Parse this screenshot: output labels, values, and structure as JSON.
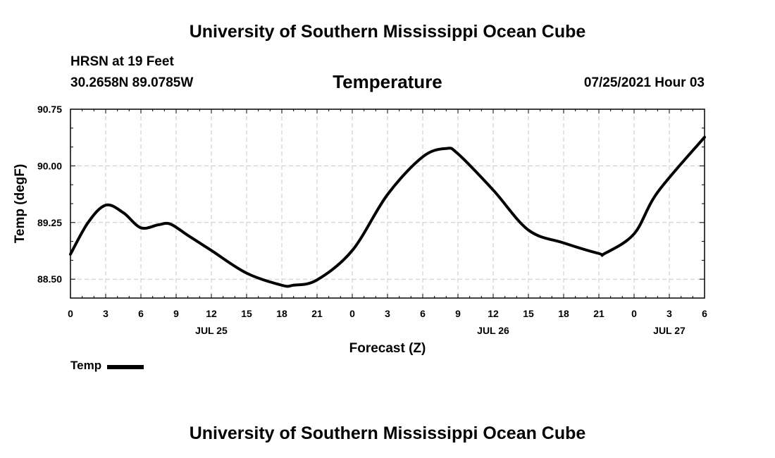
{
  "header": {
    "title": "University of Southern Mississippi Ocean Cube",
    "station": "HRSN at 19 Feet",
    "coords": "30.2658N  89.0785W",
    "subtitle": "Temperature",
    "timestamp": "07/25/2021 Hour 03",
    "footer_title": "University of Southern Mississippi Ocean Cube"
  },
  "chart_data": {
    "type": "line",
    "xlabel": "Forecast (Z)",
    "ylabel": "Temp (degF)",
    "xlim": [
      0,
      54
    ],
    "ylim": [
      88.25,
      90.75
    ],
    "y_ticks": [
      "88.50",
      "89.25",
      "90.00",
      "90.75"
    ],
    "x_tick_labels": [
      "0",
      "3",
      "6",
      "9",
      "12",
      "15",
      "18",
      "21",
      "0",
      "3",
      "6",
      "9",
      "12",
      "15",
      "18",
      "21",
      "0",
      "3",
      "6"
    ],
    "date_labels": [
      {
        "label": "JUL 25",
        "at_hours": 12
      },
      {
        "label": "JUL 26",
        "at_hours": 36
      },
      {
        "label": "JUL 27",
        "at_hours": 51
      }
    ],
    "grid": true,
    "legend_position": "bottom-left",
    "series": [
      {
        "name": "Temp",
        "color": "#000000",
        "x": [
          0,
          1.5,
          3,
          4.5,
          6,
          7.5,
          8.5,
          10,
          12,
          15,
          18,
          19,
          21,
          24,
          27,
          30,
          32,
          33,
          36,
          39,
          42,
          45,
          45.5,
          48,
          50,
          54
        ],
        "values": [
          88.83,
          89.25,
          89.48,
          89.38,
          89.18,
          89.22,
          89.23,
          89.08,
          88.88,
          88.58,
          88.42,
          88.42,
          88.49,
          88.88,
          89.62,
          90.12,
          90.23,
          90.16,
          89.68,
          89.15,
          88.98,
          88.84,
          88.84,
          89.1,
          89.65,
          90.38
        ]
      }
    ]
  },
  "legend": {
    "label": "Temp"
  }
}
